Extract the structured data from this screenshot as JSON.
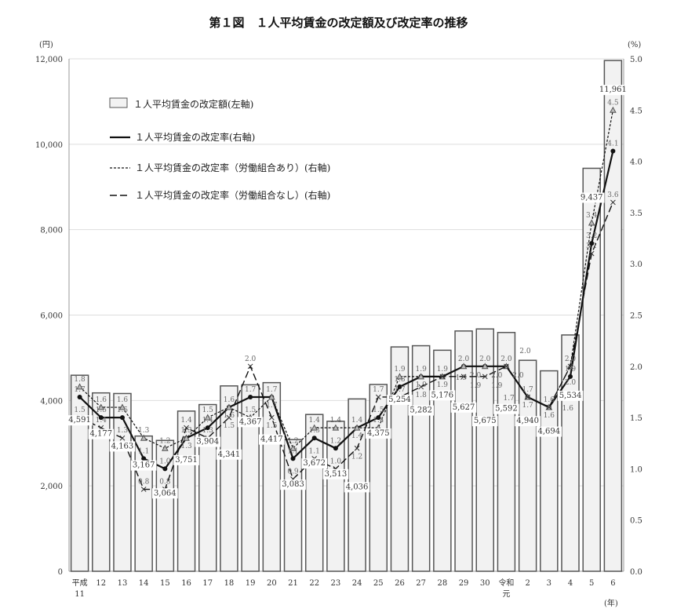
{
  "chart_data": {
    "type": "bar+line",
    "title": "第１図　１人平均賃金の改定額及び改定率の推移",
    "left_unit": "(円)",
    "right_unit": "(%)",
    "x_unit": "(年)",
    "categories": [
      "平成11",
      "12",
      "13",
      "14",
      "15",
      "16",
      "17",
      "18",
      "19",
      "20",
      "21",
      "22",
      "23",
      "24",
      "25",
      "26",
      "27",
      "28",
      "29",
      "30",
      "令和元",
      "2",
      "3",
      "4",
      "5",
      "6"
    ],
    "left_ylim": [
      0,
      12000
    ],
    "left_ticks": [
      "0",
      "2,000",
      "4,000",
      "6,000",
      "8,000",
      "10,000",
      "12,000"
    ],
    "right_ylim": [
      0,
      5.0
    ],
    "right_ticks": [
      "0.0",
      "0.5",
      "1.0",
      "1.5",
      "2.0",
      "2.5",
      "3.0",
      "3.5",
      "4.0",
      "4.5",
      "5.0"
    ],
    "grid": true,
    "legend_placement": "top-left",
    "bars": {
      "name": "１人平均賃金の改定額(左軸)",
      "values": [
        4591,
        4177,
        4163,
        3167,
        3064,
        3751,
        3904,
        4341,
        4367,
        4417,
        3083,
        3672,
        3513,
        4036,
        4375,
        5254,
        5282,
        5176,
        5627,
        5675,
        5592,
        4940,
        4694,
        5534,
        9437,
        11961
      ],
      "labels": [
        "4,591",
        "4,177",
        "4,163",
        "3,167",
        "3,064",
        "3,751",
        "3,904",
        "4,341",
        "4,367",
        "4,417",
        "3,083",
        "3,672",
        "3,513",
        "4,036",
        "4,375",
        "5,254",
        "5,282",
        "5,176",
        "5,627",
        "5,675",
        "5,592",
        "4,940",
        "4,694",
        "5,534",
        "9,437",
        "11,961"
      ]
    },
    "series": [
      {
        "name": "１人平均賃金の改定率(右軸)",
        "marker": "circle",
        "style": "solid",
        "values": [
          1.7,
          1.5,
          1.5,
          1.1,
          1.0,
          1.3,
          1.4,
          1.6,
          1.7,
          1.7,
          1.1,
          1.3,
          1.2,
          1.4,
          1.5,
          1.8,
          1.9,
          1.9,
          2.0,
          2.0,
          2.0,
          1.7,
          1.6,
          1.9,
          3.2,
          4.1
        ]
      },
      {
        "name": "１人平均賃金の改定率（労働組合あり）(右軸)",
        "marker": "triangle",
        "style": "short-dash",
        "values": [
          1.8,
          1.6,
          1.6,
          1.3,
          1.2,
          1.3,
          1.5,
          1.6,
          1.5,
          1.7,
          1.2,
          1.4,
          1.4,
          1.4,
          1.4,
          1.9,
          1.9,
          1.9,
          2.0,
          2.0,
          2.0,
          1.7,
          1.6,
          2.0,
          3.4,
          4.5
        ]
      },
      {
        "name": "１人平均賃金の改定率（労働組合なし）(右軸)",
        "marker": "x",
        "style": "long-dash",
        "values": [
          1.5,
          1.4,
          1.3,
          0.8,
          0.8,
          1.4,
          1.3,
          1.5,
          2.0,
          1.5,
          0.9,
          1.1,
          1.0,
          1.2,
          1.7,
          1.7,
          1.8,
          1.9,
          1.9,
          1.9,
          2.0,
          1.7,
          1.6,
          2.0,
          3.1,
          3.6
        ]
      }
    ],
    "colors": {
      "bar_fill": "#f2f2f2",
      "bar_stroke": "#555555",
      "line": "#111111",
      "grid": "#dddddd"
    }
  }
}
